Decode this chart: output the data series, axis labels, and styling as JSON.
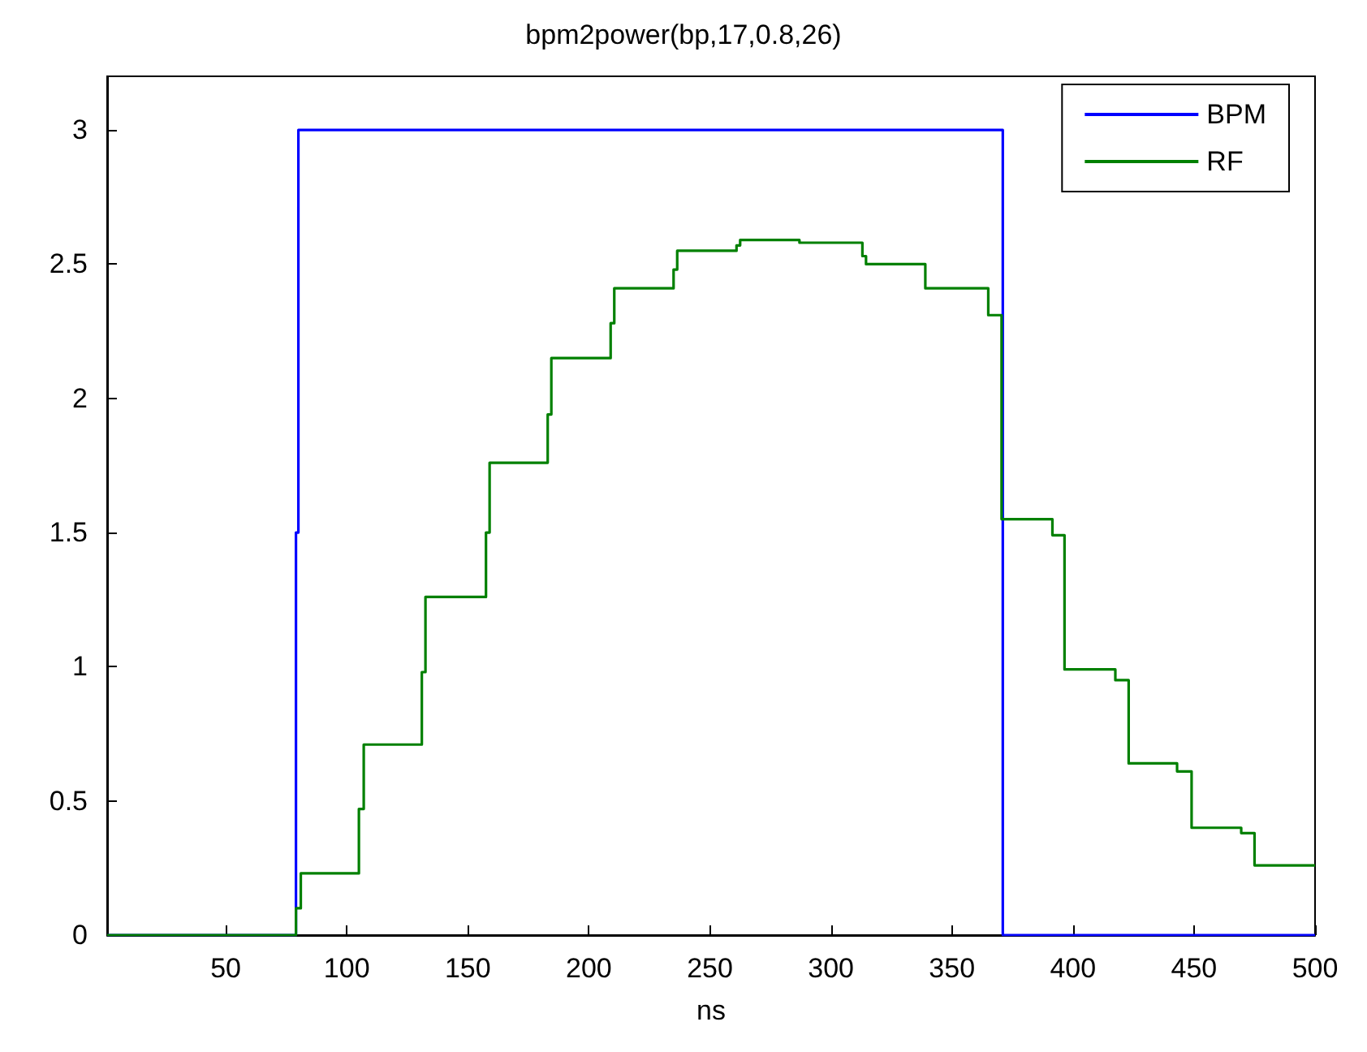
{
  "chart_data": {
    "type": "step",
    "title": "bpm2power(bp,17,0.8,26)",
    "xlabel": "ns",
    "xlim": [
      1,
      500
    ],
    "xticks": [
      50,
      100,
      150,
      200,
      250,
      300,
      350,
      400,
      450,
      500
    ],
    "ylim": [
      0,
      3.2
    ],
    "yticks": [
      0,
      0.5,
      1,
      1.5,
      2,
      2.5,
      3
    ],
    "grid": false,
    "legend": "top right",
    "marker": "none",
    "line_style": "solid",
    "series": [
      {
        "name": "BPM",
        "color": "#0000ff",
        "x": [
          1,
          79,
          80,
          371,
          500
        ],
        "values": [
          0,
          1.5,
          3,
          0,
          0
        ]
      },
      {
        "name": "RF",
        "color": "#008000",
        "x": [
          1,
          79,
          81,
          105,
          107,
          131,
          132.5,
          157.5,
          159,
          183,
          184.5,
          209,
          210.5,
          235,
          236.5,
          261,
          262.5,
          287,
          313,
          314.5,
          339,
          365,
          370.5,
          391.5,
          396.5,
          417.5,
          423,
          443,
          449,
          469.5,
          475,
          500
        ],
        "values": [
          0,
          0.1,
          0.23,
          0.47,
          0.71,
          0.98,
          1.26,
          1.5,
          1.76,
          1.94,
          2.15,
          2.28,
          2.41,
          2.48,
          2.55,
          2.57,
          2.59,
          2.58,
          2.53,
          2.5,
          2.41,
          2.31,
          1.55,
          1.49,
          0.99,
          0.95,
          0.64,
          0.61,
          0.4,
          0.38,
          0.26,
          0.26
        ]
      }
    ]
  }
}
